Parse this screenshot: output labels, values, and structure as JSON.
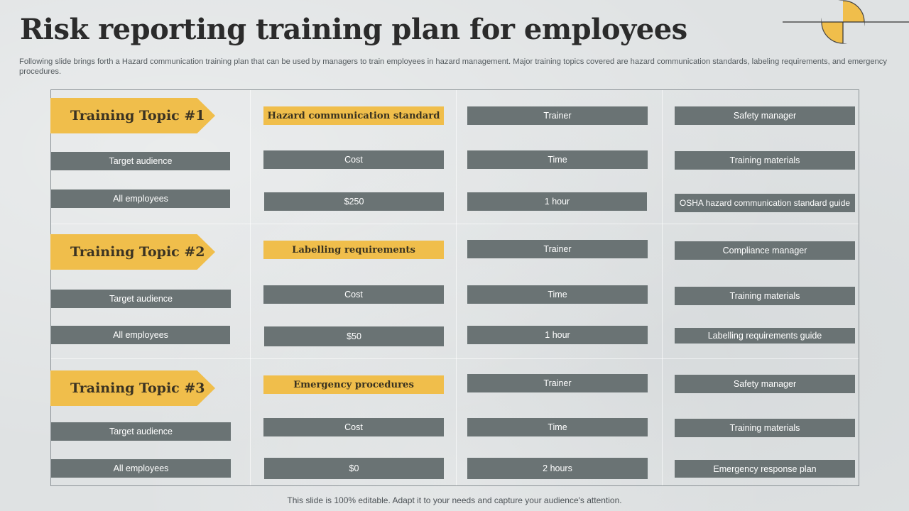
{
  "title": "Risk reporting training plan for employees",
  "subtitle": "Following slide brings forth a Hazard communication training plan that can be used by managers to train employees in hazard management. Major training topics covered are hazard communication standards, labeling requirements, and emergency procedures.",
  "colors": {
    "accent": "#f0be4b",
    "box": "#6a7374",
    "background": "#dfe2e3"
  },
  "topics": [
    {
      "label": "Training Topic #1",
      "name": "Hazard communication standard",
      "audience_label": "Target audience",
      "audience": "All employees",
      "cost_label": "Cost",
      "cost": "$250",
      "trainer_label": "Trainer",
      "trainer": "Safety manager",
      "time_label": "Time",
      "time": "1 hour",
      "materials_label": "Training materials",
      "materials": "OSHA hazard communication standard guide"
    },
    {
      "label": "Training Topic #2",
      "name": "Labelling requirements",
      "audience_label": "Target audience",
      "audience": "All employees",
      "cost_label": "Cost",
      "cost": "$50",
      "trainer_label": "Trainer",
      "trainer": "Compliance manager",
      "time_label": "Time",
      "time": "1 hour",
      "materials_label": "Training materials",
      "materials": "Labelling requirements guide"
    },
    {
      "label": "Training Topic #3",
      "name": "Emergency procedures",
      "audience_label": "Target audience",
      "audience": "All employees",
      "cost_label": "Cost",
      "cost": "$0",
      "trainer_label": "Trainer",
      "trainer": "Safety manager",
      "time_label": "Time",
      "time": "2 hours",
      "materials_label": "Training materials",
      "materials": "Emergency response plan"
    }
  ],
  "footer": "This slide is 100% editable. Adapt it to your needs and capture your audience's attention."
}
